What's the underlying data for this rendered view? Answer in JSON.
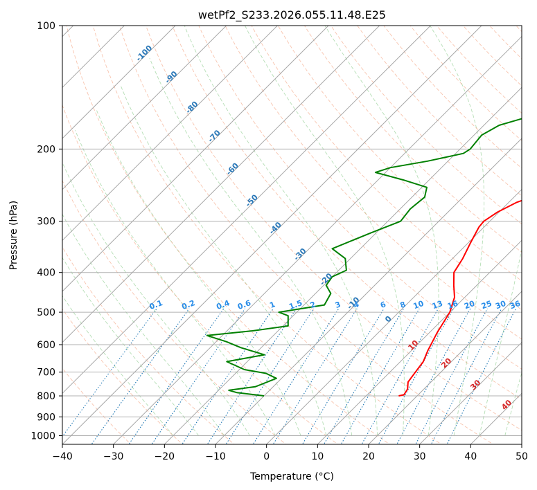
{
  "chart_data": {
    "type": "line",
    "title": "wetPf2_S233.2026.055.11.48.E25",
    "xlabel": "Temperature (°C)",
    "ylabel": "Pressure (hPa)",
    "xlim": [
      -40,
      50
    ],
    "ylim": [
      1050,
      100
    ],
    "yscale": "log",
    "grid": true,
    "x_ticks": [
      -40,
      -30,
      -20,
      -10,
      0,
      10,
      20,
      30,
      40,
      50
    ],
    "y_ticks": [
      1000,
      900,
      800,
      700,
      600,
      500,
      400,
      300,
      200,
      100
    ],
    "series": [
      {
        "name": "",
        "color": "#ff0000",
        "points": [
          [
            16.4,
            800
          ],
          [
            17.2,
            795
          ],
          [
            16.8,
            770
          ],
          [
            15.5,
            740
          ],
          [
            15.0,
            700
          ],
          [
            14.5,
            660
          ],
          [
            13.2,
            620
          ],
          [
            11.5,
            560
          ],
          [
            10.0,
            500
          ],
          [
            8.0,
            460
          ],
          [
            5.5,
            430
          ],
          [
            3.0,
            400
          ],
          [
            2.0,
            370
          ],
          [
            0.5,
            340
          ],
          [
            -1.0,
            310
          ],
          [
            -1.2,
            300
          ],
          [
            -0.3,
            285
          ],
          [
            1.5,
            270
          ],
          [
            5.0,
            255
          ],
          [
            8.5,
            240
          ],
          [
            10.5,
            220
          ],
          [
            11.5,
            205
          ],
          [
            12.5,
            180
          ],
          [
            12.0,
            160
          ],
          [
            11.0,
            145
          ],
          [
            10.0,
            130
          ],
          [
            9.5,
            115
          ],
          [
            9.3,
            100
          ]
        ]
      },
      {
        "name": "",
        "color": "#008000",
        "points": [
          [
            -10.0,
            800
          ],
          [
            -12.0,
            795
          ],
          [
            -16.0,
            785
          ],
          [
            -18.0,
            775
          ],
          [
            -13.5,
            760
          ],
          [
            -11.0,
            725
          ],
          [
            -14.0,
            705
          ],
          [
            -19.0,
            690
          ],
          [
            -24.0,
            660
          ],
          [
            -18.0,
            635
          ],
          [
            -24.0,
            610
          ],
          [
            -28.0,
            590
          ],
          [
            -33.0,
            570
          ],
          [
            -25.0,
            555
          ],
          [
            -19.0,
            540
          ],
          [
            -21.0,
            510
          ],
          [
            -23.5,
            500
          ],
          [
            -16.0,
            480
          ],
          [
            -17.0,
            450
          ],
          [
            -19.5,
            430
          ],
          [
            -20.0,
            410
          ],
          [
            -18.5,
            395
          ],
          [
            -21.0,
            370
          ],
          [
            -25.5,
            350
          ],
          [
            -21.0,
            320
          ],
          [
            -17.5,
            300
          ],
          [
            -18.0,
            280
          ],
          [
            -17.5,
            262
          ],
          [
            -19.0,
            248
          ],
          [
            -25.0,
            238
          ],
          [
            -32.0,
            228
          ],
          [
            -30.0,
            222
          ],
          [
            -24.0,
            214
          ],
          [
            -18.5,
            205
          ],
          [
            -18.0,
            200
          ],
          [
            -18.5,
            185
          ],
          [
            -17.0,
            175
          ],
          [
            -13.0,
            167
          ],
          [
            -9.0,
            160
          ],
          [
            -8.5,
            150
          ],
          [
            -7.0,
            140
          ],
          [
            -5.0,
            130
          ],
          [
            -2.0,
            120
          ],
          [
            1.0,
            108
          ],
          [
            3.5,
            100
          ]
        ]
      }
    ],
    "dry_adiabat_labels": [
      "-100",
      "-90",
      "-80",
      "-70",
      "-60",
      "-50",
      "-40",
      "-30",
      "-20",
      "-10",
      "0",
      "10",
      "20",
      "30",
      "40"
    ],
    "moist_adiabat_labels": [
      "10",
      "20",
      "30",
      "40"
    ],
    "mixing_ratio_labels": [
      "0.1",
      "0.2",
      "0.4",
      "0.6",
      "1",
      "1.5",
      "2",
      "3",
      "4",
      "6",
      "8",
      "10",
      "13",
      "16",
      "20",
      "25",
      "30",
      "36"
    ]
  }
}
